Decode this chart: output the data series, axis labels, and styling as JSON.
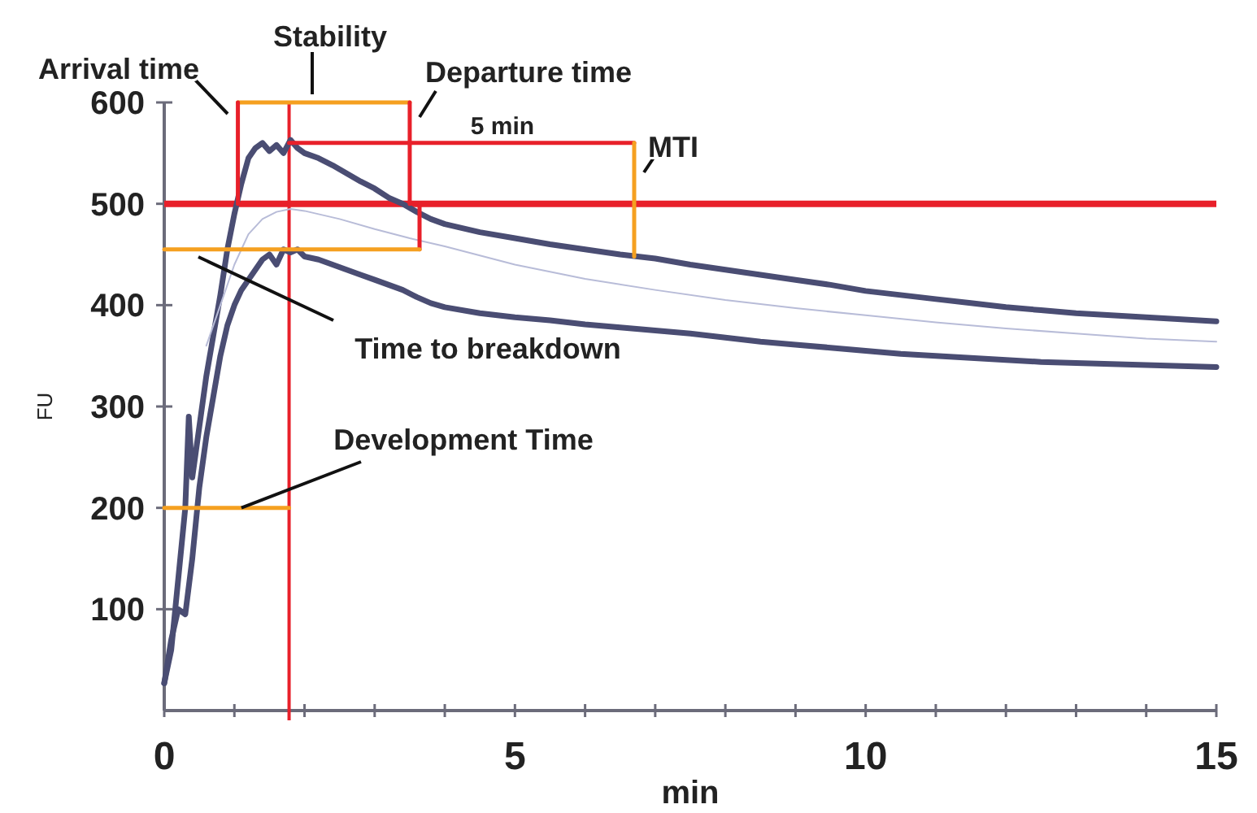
{
  "chart_data": {
    "type": "line",
    "xlabel": "min",
    "ylabel": "FU",
    "xlim": [
      0,
      15
    ],
    "ylim": [
      0,
      600
    ],
    "xticks": [
      0,
      {
        "value": 1,
        "label": null
      },
      {
        "value": 2,
        "label": null
      },
      {
        "value": 3,
        "label": null
      },
      {
        "value": 4,
        "label": null
      },
      5,
      {
        "value": 6,
        "label": null
      },
      {
        "value": 7,
        "label": null
      },
      {
        "value": 8,
        "label": null
      },
      {
        "value": 9,
        "label": null
      },
      10,
      {
        "value": 11,
        "label": null
      },
      {
        "value": 12,
        "label": null
      },
      {
        "value": 13,
        "label": null
      },
      {
        "value": 14,
        "label": null
      },
      15
    ],
    "yticks": [
      100,
      200,
      300,
      400,
      500,
      600
    ],
    "grid": false,
    "marker": "none",
    "line_style": "solid",
    "series": [
      {
        "color": "#4a4d73",
        "x": [
          0,
          0.1,
          0.2,
          0.3,
          0.35,
          0.4,
          0.5,
          0.6,
          0.7,
          0.8,
          0.9,
          1.0,
          1.1,
          1.2,
          1.3,
          1.4,
          1.5,
          1.6,
          1.7,
          1.8,
          1.9,
          2.0,
          2.2,
          2.4,
          2.6,
          2.8,
          3.0,
          3.2,
          3.4,
          3.6,
          3.8,
          4.0,
          4.5,
          5.0,
          5.5,
          6.0,
          6.5,
          7.0,
          7.5,
          8.0,
          8.5,
          9.0,
          9.5,
          10,
          10.5,
          11,
          11.5,
          12,
          12.5,
          13,
          13.5,
          14,
          14.5,
          15
        ],
        "values": [
          27,
          60,
          130,
          200,
          290,
          230,
          280,
          330,
          370,
          410,
          455,
          490,
          520,
          545,
          555,
          560,
          552,
          558,
          550,
          563,
          555,
          550,
          545,
          538,
          530,
          522,
          515,
          506,
          500,
          492,
          485,
          480,
          472,
          466,
          460,
          455,
          450,
          446,
          440,
          435,
          430,
          425,
          420,
          414,
          410,
          406,
          402,
          398,
          395,
          392,
          390,
          388,
          386,
          384
        ]
      },
      {
        "color": "#4a4d73",
        "x": [
          0,
          0.1,
          0.2,
          0.3,
          0.4,
          0.5,
          0.6,
          0.7,
          0.8,
          0.9,
          1.0,
          1.1,
          1.2,
          1.3,
          1.4,
          1.5,
          1.6,
          1.7,
          1.8,
          1.9,
          2.0,
          2.2,
          2.4,
          2.6,
          2.8,
          3.0,
          3.2,
          3.4,
          3.6,
          3.8,
          4.0,
          4.5,
          5.0,
          5.5,
          6.0,
          6.5,
          7.0,
          7.5,
          8.0,
          8.5,
          9.0,
          9.5,
          10,
          10.5,
          11,
          11.5,
          12,
          12.5,
          13,
          13.5,
          14,
          14.5,
          15
        ],
        "values": [
          27,
          70,
          100,
          95,
          150,
          220,
          270,
          310,
          350,
          380,
          400,
          415,
          425,
          435,
          445,
          450,
          440,
          455,
          452,
          455,
          448,
          445,
          440,
          435,
          430,
          425,
          420,
          415,
          408,
          402,
          398,
          392,
          388,
          385,
          381,
          378,
          375,
          372,
          368,
          364,
          361,
          358,
          355,
          352,
          350,
          348,
          346,
          344,
          343,
          342,
          341,
          340,
          339
        ]
      },
      {
        "color": "#b8bcd8",
        "x": [
          0.6,
          0.8,
          1.0,
          1.2,
          1.4,
          1.6,
          1.8,
          2.0,
          2.5,
          3.0,
          3.5,
          4.0,
          5.0,
          6.0,
          7.0,
          8.0,
          9.0,
          10,
          11,
          12,
          13,
          14,
          15
        ],
        "values": [
          360,
          400,
          440,
          470,
          485,
          492,
          495,
          493,
          485,
          475,
          466,
          458,
          440,
          426,
          415,
          405,
          397,
          390,
          383,
          377,
          372,
          367,
          364
        ]
      },
      {
        "color": "#f5a020",
        "x": [
          1.05,
          3.5
        ],
        "values": [
          600,
          600
        ]
      },
      {
        "color": "#e8202a",
        "x": [
          1.05,
          1.05
        ],
        "values": [
          500,
          600
        ]
      },
      {
        "color": "#e8202a",
        "x": [
          3.5,
          3.5
        ],
        "values": [
          500,
          600
        ]
      },
      {
        "color": "#e8202a",
        "x": [
          3.64,
          3.64
        ],
        "values": [
          455,
          500
        ]
      },
      {
        "color": "#f5a020",
        "x": [
          0,
          3.64
        ],
        "values": [
          455,
          455
        ]
      },
      {
        "color": "#f5a020",
        "x": [
          0,
          1.78
        ],
        "values": [
          200,
          200
        ]
      },
      {
        "color": "#e8202a",
        "x": [
          1.78,
          6.7
        ],
        "values": [
          560,
          560
        ]
      },
      {
        "color": "#f5a020",
        "x": [
          6.7,
          6.7
        ],
        "values": [
          448,
          560
        ]
      }
    ],
    "ref_lines": [
      {
        "axis": "y",
        "value": 500,
        "color": "#e8202a"
      },
      {
        "axis": "x",
        "value": 1.78,
        "color": "#e8202a"
      }
    ],
    "annotations": [
      "Arrival time",
      "Stability",
      "Departure time",
      "5 min",
      "MTI",
      "Time to breakdown",
      {
        "text": "Development Time",
        "x": 1.1,
        "y": 200
      }
    ]
  }
}
